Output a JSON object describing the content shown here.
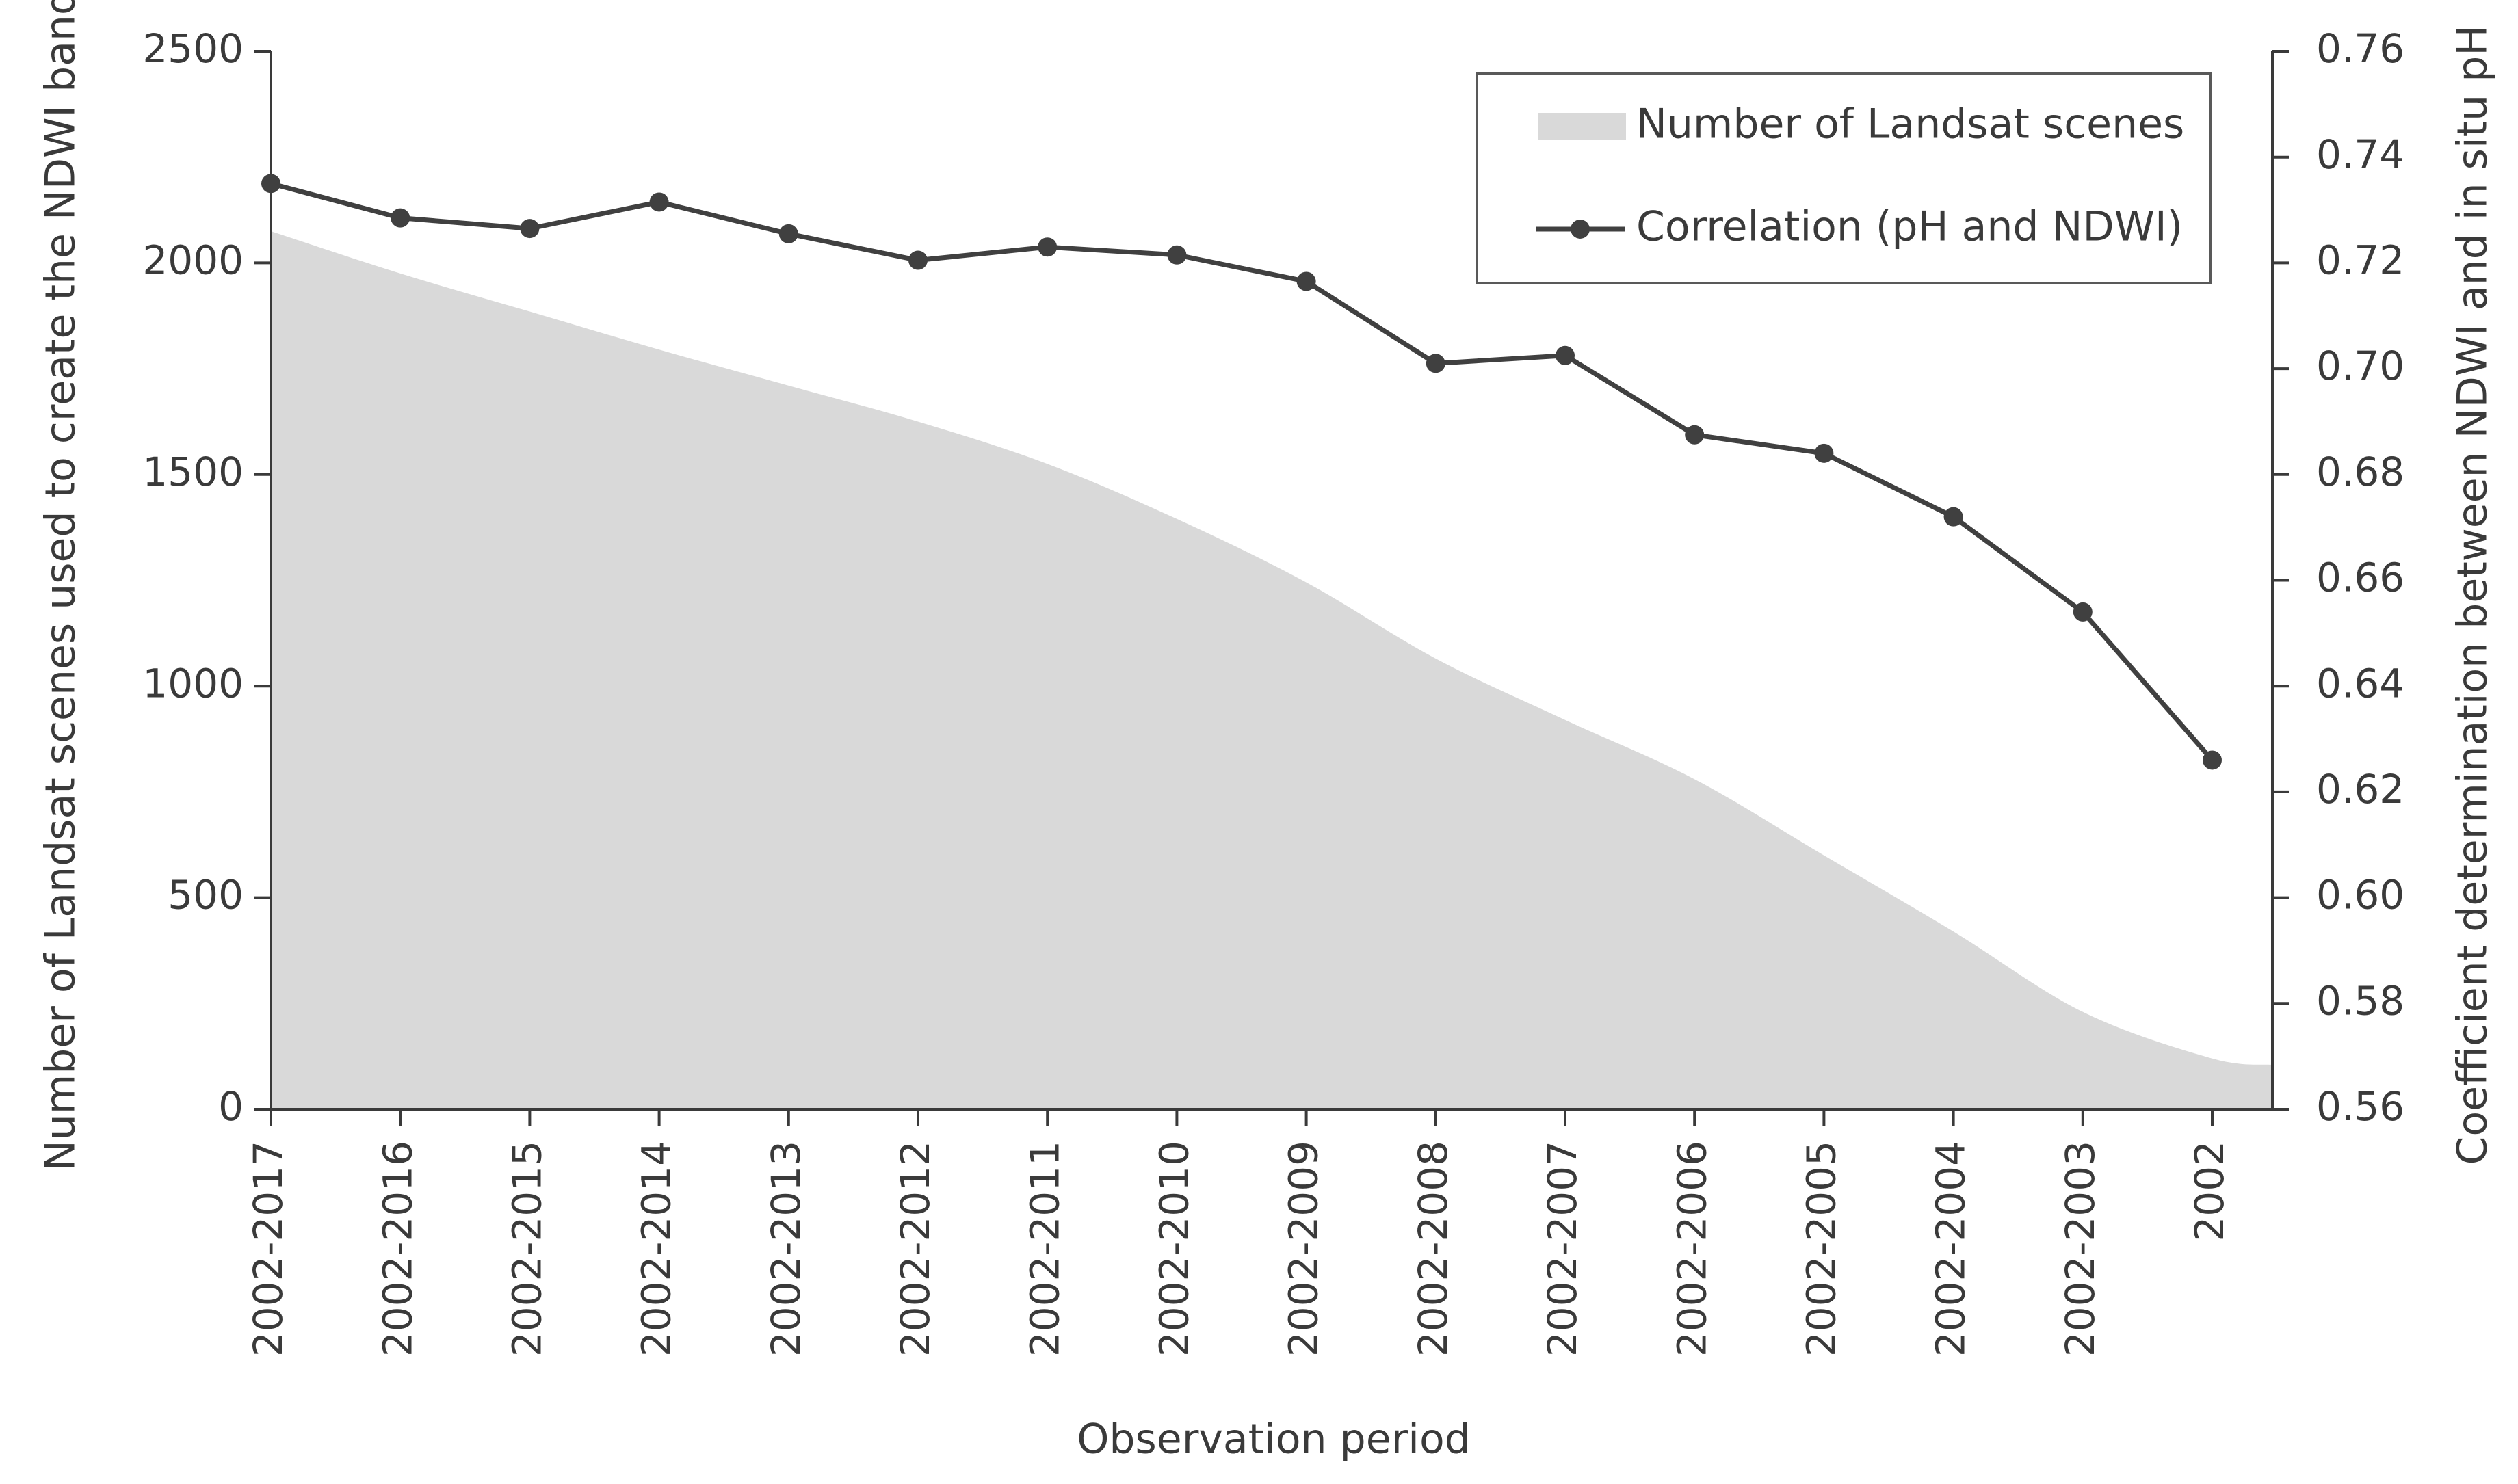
{
  "chart_data": {
    "type": "area+line",
    "title": "",
    "categories": [
      "2002-2017",
      "2002-2016",
      "2002-2015",
      "2002-2014",
      "2002-2013",
      "2002-2012",
      "2002-2011",
      "2002-2010",
      "2002-2009",
      "2002-2008",
      "2002-2007",
      "2002-2006",
      "2002-2005",
      "2002-2004",
      "2002-2003",
      "2002"
    ],
    "xlabel": "Observation period",
    "series": [
      {
        "name": "Number of Landsat scenes",
        "type": "area",
        "axis": "left",
        "color": "#d9d9d9",
        "values": [
          2075,
          1975,
          1885,
          1795,
          1710,
          1625,
          1525,
          1395,
          1245,
          1065,
          920,
          780,
          600,
          420,
          230,
          120
        ],
        "end_value": 105
      },
      {
        "name": "Correlation (pH and NDWI)",
        "type": "line",
        "axis": "right",
        "color": "#404040",
        "values": [
          0.735,
          0.7285,
          0.7265,
          0.7315,
          0.7255,
          0.7205,
          0.723,
          0.7215,
          0.7165,
          0.701,
          0.7025,
          0.6875,
          0.684,
          0.672,
          0.654,
          0.626
        ]
      }
    ],
    "y_left": {
      "label": "Number of Landsat scenes used to create the NDWI band",
      "ylim": [
        0,
        2500
      ],
      "ticks": [
        "0",
        "500",
        "1000",
        "1500",
        "2000",
        "2500"
      ]
    },
    "y_right": {
      "label": "Coefficient determination between NDWI and in situ pH",
      "ylim": [
        0.56,
        0.76
      ],
      "ticks": [
        "0.56",
        "0.58",
        "0.60",
        "0.62",
        "0.64",
        "0.66",
        "0.68",
        "0.70",
        "0.72",
        "0.74",
        "0.76"
      ]
    },
    "legend": {
      "position": "top-right",
      "entries": [
        "Number of Landsat scenes",
        "Correlation (pH and NDWI)"
      ]
    }
  }
}
